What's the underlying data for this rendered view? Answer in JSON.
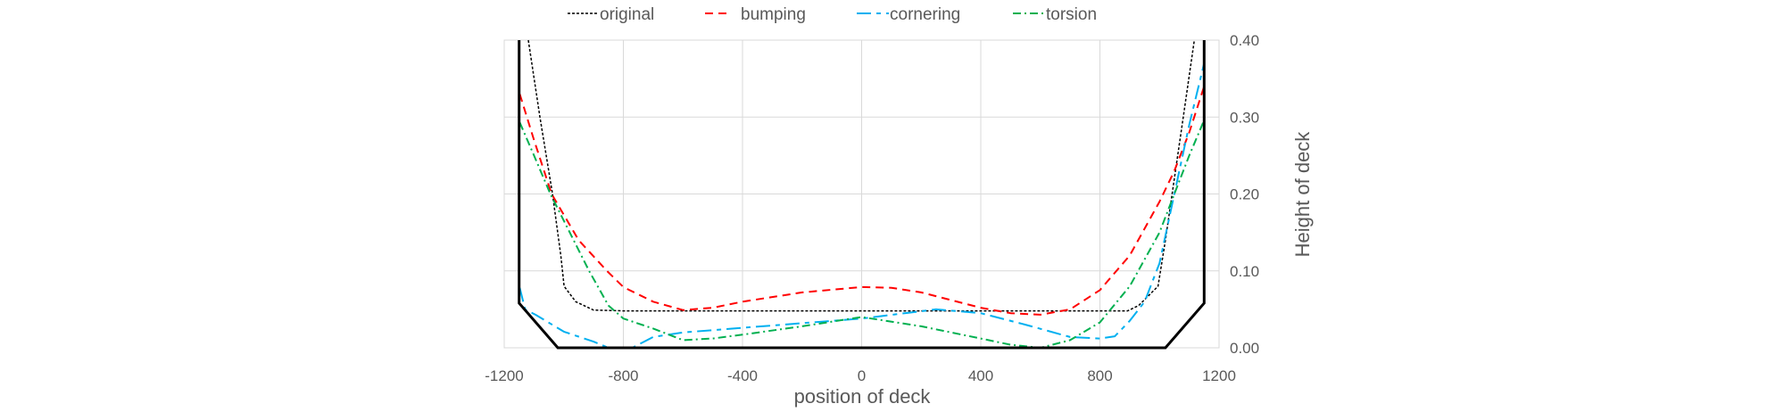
{
  "chart_data": {
    "type": "line",
    "title": "",
    "xlabel": "position of deck",
    "ylabel": "Height of deck",
    "xlim": [
      -1200,
      1200
    ],
    "ylim": [
      0,
      0.4
    ],
    "x_ticks": [
      -1200,
      -800,
      -400,
      0,
      400,
      800,
      1200
    ],
    "x_tick_labels": [
      "-1200",
      "-800",
      "-400",
      "0",
      "400",
      "800",
      "1200"
    ],
    "y_ticks": [
      0,
      0.1,
      0.2,
      0.3,
      0.4
    ],
    "y_tick_labels": [
      "0.00",
      "0.10",
      "0.20",
      "0.30",
      "0.40"
    ],
    "y_axis_position": "right",
    "grid": true,
    "legend_position": "top",
    "boundary": {
      "name": "deck outline",
      "color": "#000000",
      "style": "solid",
      "points": [
        [
          -1150,
          0.4
        ],
        [
          -1150,
          0.058
        ],
        [
          -1020,
          0.0
        ],
        [
          1020,
          0.0
        ],
        [
          1150,
          0.058
        ],
        [
          1150,
          0.4
        ]
      ]
    },
    "series": [
      {
        "name": "original",
        "color": "#000000",
        "dash": "3,2",
        "width": 1.5,
        "points": [
          [
            -1119,
            0.4
          ],
          [
            -1080,
            0.3
          ],
          [
            -1038,
            0.2
          ],
          [
            -1010,
            0.12
          ],
          [
            -999,
            0.08
          ],
          [
            -960,
            0.06
          ],
          [
            -900,
            0.049
          ],
          [
            -800,
            0.048
          ],
          [
            -400,
            0.048
          ],
          [
            0,
            0.048
          ],
          [
            400,
            0.048
          ],
          [
            800,
            0.048
          ],
          [
            893,
            0.048
          ],
          [
            930,
            0.055
          ],
          [
            995,
            0.08
          ],
          [
            1020,
            0.14
          ],
          [
            1050,
            0.22
          ],
          [
            1080,
            0.3
          ],
          [
            1117,
            0.4
          ]
        ]
      },
      {
        "name": "bumping",
        "color": "#ff0000",
        "dash": "9,6",
        "width": 2,
        "points": [
          [
            -1148,
            0.33
          ],
          [
            -1100,
            0.27
          ],
          [
            -1041,
            0.2
          ],
          [
            -950,
            0.14
          ],
          [
            -855,
            0.1
          ],
          [
            -800,
            0.079
          ],
          [
            -700,
            0.06
          ],
          [
            -600,
            0.049
          ],
          [
            -500,
            0.052
          ],
          [
            -400,
            0.06
          ],
          [
            -200,
            0.072
          ],
          [
            0,
            0.079
          ],
          [
            100,
            0.078
          ],
          [
            200,
            0.072
          ],
          [
            300,
            0.062
          ],
          [
            400,
            0.052
          ],
          [
            500,
            0.045
          ],
          [
            600,
            0.043
          ],
          [
            700,
            0.05
          ],
          [
            800,
            0.075
          ],
          [
            900,
            0.12
          ],
          [
            1000,
            0.19
          ],
          [
            1050,
            0.23
          ],
          [
            1100,
            0.28
          ],
          [
            1150,
            0.34
          ]
        ]
      },
      {
        "name": "cornering",
        "color": "#00b0f0",
        "dash": "16,6,5,6",
        "width": 2,
        "points": [
          [
            -1148,
            0.078
          ],
          [
            -1130,
            0.05
          ],
          [
            -1095,
            0.043
          ],
          [
            -1000,
            0.021
          ],
          [
            -900,
            0.008
          ],
          [
            -850,
            0.0
          ],
          [
            -770,
            0.0
          ],
          [
            -700,
            0.014
          ],
          [
            -600,
            0.02
          ],
          [
            -400,
            0.026
          ],
          [
            -200,
            0.032
          ],
          [
            0,
            0.038
          ],
          [
            250,
            0.05
          ],
          [
            400,
            0.045
          ],
          [
            550,
            0.03
          ],
          [
            700,
            0.014
          ],
          [
            800,
            0.012
          ],
          [
            850,
            0.015
          ],
          [
            900,
            0.035
          ],
          [
            950,
            0.06
          ],
          [
            1000,
            0.11
          ],
          [
            1050,
            0.2
          ],
          [
            1100,
            0.29
          ],
          [
            1150,
            0.37
          ]
        ]
      },
      {
        "name": "torsion",
        "color": "#00b050",
        "dash": "9,4,2,4",
        "width": 2,
        "points": [
          [
            -1148,
            0.293
          ],
          [
            -1100,
            0.25
          ],
          [
            -1045,
            0.2
          ],
          [
            -980,
            0.15
          ],
          [
            -915,
            0.1
          ],
          [
            -850,
            0.055
          ],
          [
            -800,
            0.038
          ],
          [
            -700,
            0.025
          ],
          [
            -600,
            0.01
          ],
          [
            -500,
            0.012
          ],
          [
            -400,
            0.017
          ],
          [
            -200,
            0.028
          ],
          [
            0,
            0.04
          ],
          [
            200,
            0.028
          ],
          [
            400,
            0.012
          ],
          [
            500,
            0.004
          ],
          [
            600,
            0.0
          ],
          [
            700,
            0.01
          ],
          [
            800,
            0.033
          ],
          [
            900,
            0.08
          ],
          [
            1000,
            0.15
          ],
          [
            1050,
            0.2
          ],
          [
            1100,
            0.25
          ],
          [
            1150,
            0.296
          ]
        ]
      }
    ]
  },
  "legend": {
    "items": [
      {
        "label": "original",
        "color": "#000000",
        "dash": "3,2"
      },
      {
        "label": "bumping",
        "color": "#ff0000",
        "dash": "9,6"
      },
      {
        "label": "cornering",
        "color": "#00b0f0",
        "dash": "16,6,5,6"
      },
      {
        "label": "torsion",
        "color": "#00b050",
        "dash": "9,4,2,4"
      }
    ]
  },
  "colors": {
    "grid": "#d9d9d9",
    "text": "#595959",
    "background": "#ffffff"
  }
}
